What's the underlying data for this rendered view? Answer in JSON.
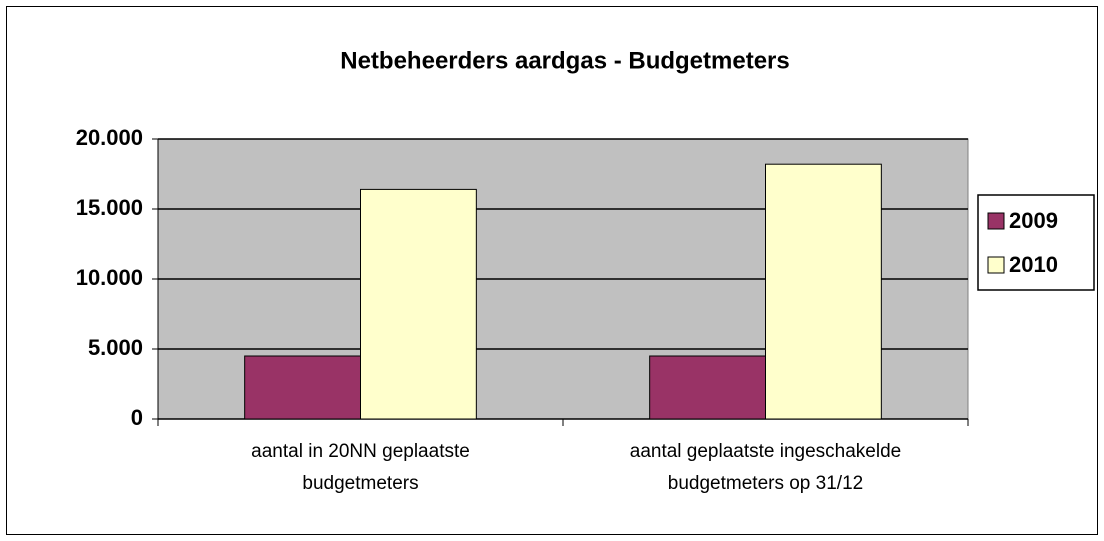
{
  "chart_data": {
    "type": "bar",
    "title": "Netbeheerders aardgas - Budgetmeters",
    "categories": [
      "aantal in 20NN geplaatste budgetmeters",
      "aantal geplaatste ingeschakelde budgetmeters op 31/12"
    ],
    "series": [
      {
        "name": "2009",
        "color": "#993366",
        "values": [
          4500,
          4500
        ]
      },
      {
        "name": "2010",
        "color": "#ffffcc",
        "values": [
          16400,
          18200
        ]
      }
    ],
    "ylim": [
      0,
      20000
    ],
    "yticks": [
      0,
      {
        "value": 5000,
        "label": "5.000"
      },
      {
        "value": 10000,
        "label": "10.000"
      },
      {
        "value": 15000,
        "label": "15.000"
      },
      {
        "value": 20000,
        "label": "20.000"
      }
    ],
    "grid": true,
    "legend": "right"
  }
}
